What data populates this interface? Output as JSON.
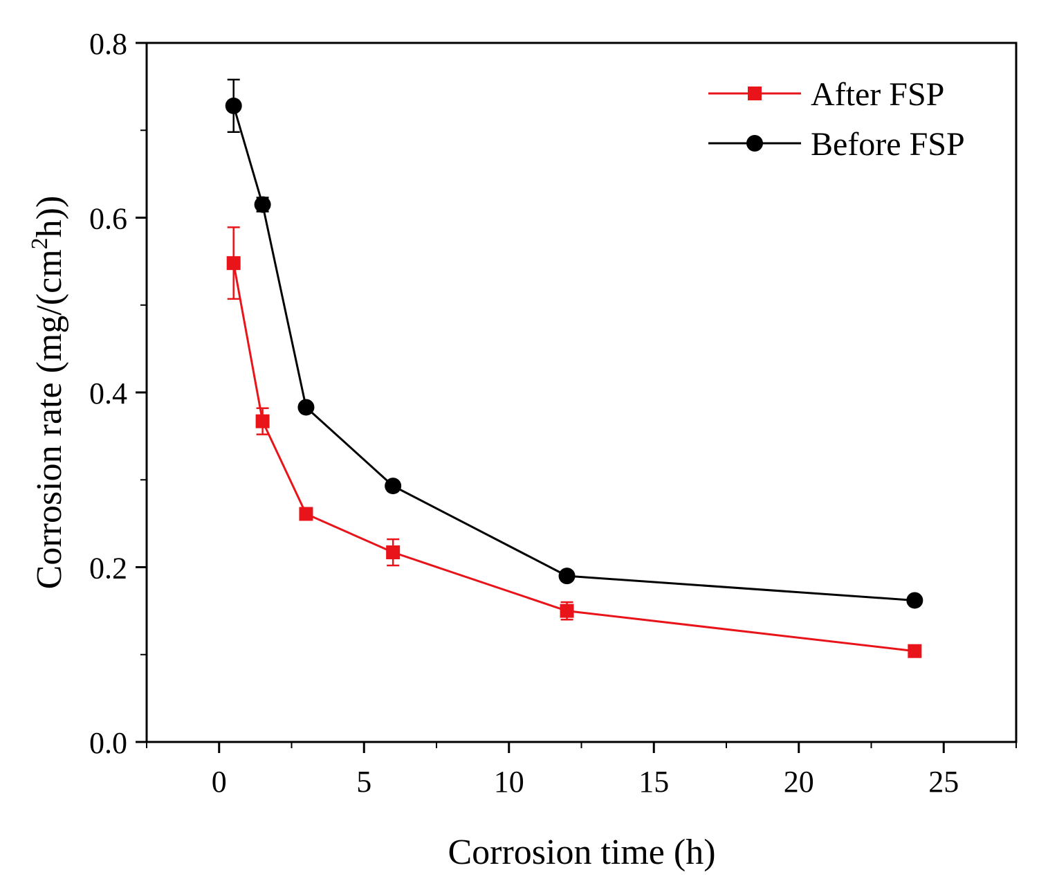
{
  "chart_data": {
    "type": "line",
    "title": "",
    "xlabel": "Corrosion time (h)",
    "ylabel_main": "Corrosion rate (mg/(cm",
    "ylabel_sup": "2",
    "ylabel_end": "h))",
    "xlim": [
      -2.5,
      27.5
    ],
    "ylim": [
      0.0,
      0.8
    ],
    "xticks": [
      0,
      5,
      10,
      15,
      20,
      25
    ],
    "xtick_labels": [
      "0",
      "5",
      "10",
      "15",
      "20",
      "25"
    ],
    "yticks": [
      0.0,
      0.2,
      0.4,
      0.6,
      0.8
    ],
    "ytick_labels": [
      "0.0",
      "0.2",
      "0.4",
      "0.6",
      "0.8"
    ],
    "grid": false,
    "legend_position": "top-right",
    "series": [
      {
        "name": "After FSP",
        "color": "#e8141a",
        "marker": "square",
        "x": [
          0.5,
          1.5,
          3,
          6,
          12,
          24
        ],
        "y": [
          0.548,
          0.367,
          0.261,
          0.217,
          0.15,
          0.104
        ],
        "err": [
          0.041,
          0.015,
          0.005,
          0.015,
          0.01,
          0.005
        ]
      },
      {
        "name": "Before FSP",
        "color": "#000000",
        "marker": "circle",
        "x": [
          0.5,
          1.5,
          3,
          6,
          12,
          24
        ],
        "y": [
          0.728,
          0.615,
          0.383,
          0.293,
          0.19,
          0.162
        ],
        "err": [
          0.03,
          0.008,
          0.005,
          0.005,
          0.004,
          0.004
        ]
      }
    ]
  }
}
